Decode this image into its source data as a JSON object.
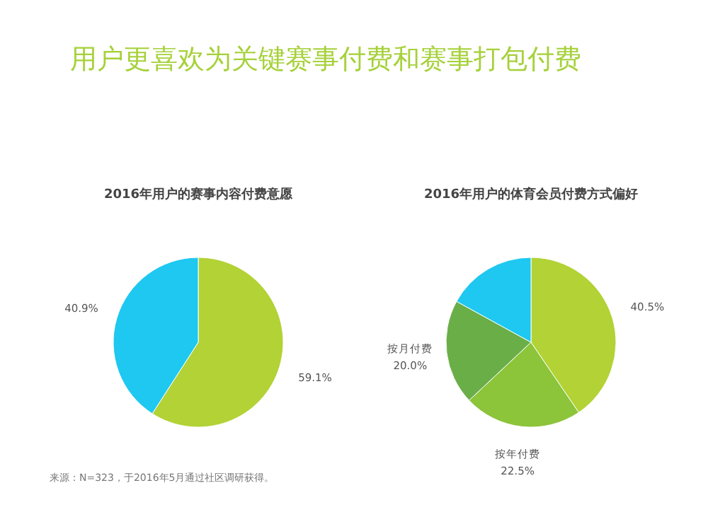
{
  "chart_data": [
    {
      "type": "other",
      "title": "用户更喜欢为关键赛事付费和赛事打包付费",
      "annotations": [
        "来源：N=323，于2016年5月通过社区调研获得。"
      ]
    },
    {
      "type": "pie",
      "title": "2016年用户的赛事内容付费意愿",
      "categories": [
        null,
        null
      ],
      "values": [
        59.1,
        40.9
      ],
      "colors": [
        "#b2d235",
        "#1ec8f0"
      ],
      "value_labels": [
        "59.1%",
        "40.9%"
      ]
    },
    {
      "type": "pie",
      "title": "2016年用户的体育会员付费方式偏好",
      "categories": [
        null,
        "按年付费",
        "按月付费",
        null
      ],
      "values": [
        40.5,
        22.5,
        20.0,
        17.0
      ],
      "colors": [
        "#b2d235",
        "#8cc43a",
        "#6aae48",
        "#1ec8f0"
      ],
      "value_labels": [
        "40.5%",
        "22.5%",
        "20.0%",
        null
      ]
    }
  ]
}
